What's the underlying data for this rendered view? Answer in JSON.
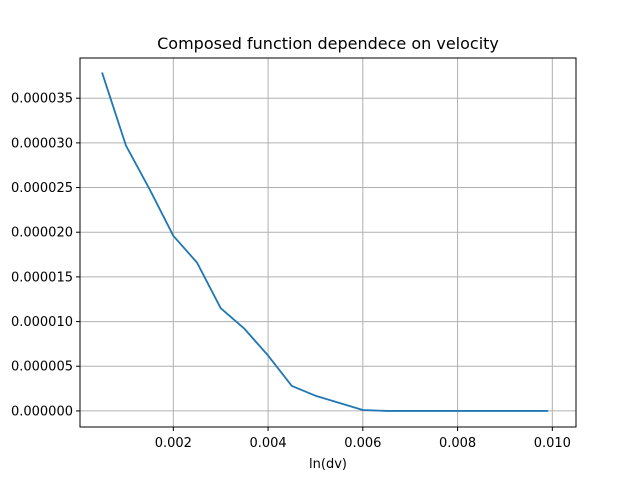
{
  "chart_data": {
    "type": "line",
    "title": "Composed function dependece on velocity",
    "xlabel": "ln(dv)",
    "ylabel": "",
    "grid": true,
    "legend": "none",
    "xlim": [
      3e-05,
      0.0105
    ],
    "ylim": [
      -1.8e-06,
      3.95e-05
    ],
    "xticks": [
      0.002,
      0.004,
      0.006,
      0.008,
      0.01
    ],
    "xtick_labels": [
      "0.002",
      "0.004",
      "0.006",
      "0.008",
      "0.010"
    ],
    "yticks": [
      0.0,
      5e-06,
      1e-05,
      1.5e-05,
      2e-05,
      2.5e-05,
      3e-05,
      3.5e-05
    ],
    "ytick_labels": [
      "0.000000",
      "0.000005",
      "0.000010",
      "0.000015",
      "0.000020",
      "0.000025",
      "0.000030",
      "0.000035"
    ],
    "series": [
      {
        "name": "composed function",
        "color": "#1f77b4",
        "x": [
          0.0005,
          0.001,
          0.0015,
          0.002,
          0.0025,
          0.003,
          0.0035,
          0.004,
          0.0045,
          0.005,
          0.0055,
          0.006,
          0.0065,
          0.007,
          0.0075,
          0.008,
          0.0085,
          0.009,
          0.0095,
          0.0099
        ],
        "y": [
          3.78e-05,
          2.97e-05,
          2.48e-05,
          1.96e-05,
          1.66e-05,
          1.15e-05,
          9.2e-06,
          6.2e-06,
          2.8e-06,
          1.7e-06,
          9e-07,
          1e-07,
          0.0,
          0.0,
          0.0,
          0.0,
          0.0,
          0.0,
          0.0,
          0.0
        ]
      }
    ]
  }
}
